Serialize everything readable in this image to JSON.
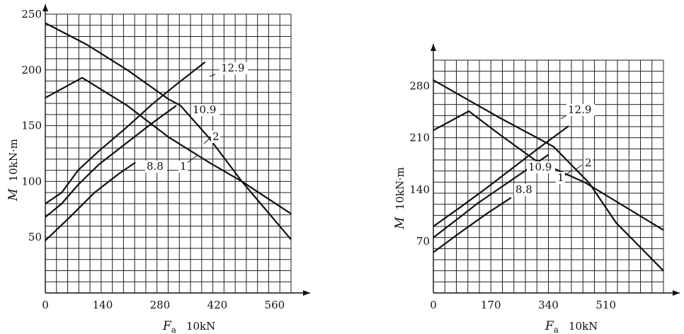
{
  "chart_data": [
    {
      "type": "line",
      "xlabel": "Fa",
      "xlabel_sub": "a",
      "xunit": "10kN",
      "ylabel": "M",
      "yunit": "10kN·m",
      "xlim": [
        0,
        600
      ],
      "ylim": [
        0,
        250
      ],
      "xticks": [
        0,
        140,
        280,
        420,
        560
      ],
      "yticks": [
        50,
        100,
        150,
        200,
        250
      ],
      "grid": true,
      "series": [
        {
          "name": "12.9",
          "x": [
            0,
            40,
            80,
            130,
            200,
            260,
            320,
            390
          ],
          "y": [
            80,
            90,
            110,
            127,
            149,
            169,
            187,
            207
          ]
        },
        {
          "name": "10.9",
          "x": [
            0,
            40,
            80,
            130,
            200,
            260,
            320
          ],
          "y": [
            68,
            80,
            97,
            115,
            135,
            152,
            168
          ]
        },
        {
          "name": "8.8",
          "x": [
            0,
            60,
            120,
            180,
            220
          ],
          "y": [
            47,
            68,
            90,
            107,
            117
          ]
        },
        {
          "name": "1",
          "x": [
            0,
            90,
            200,
            300,
            400,
            480,
            600
          ],
          "y": [
            175,
            193,
            168,
            140,
            117,
            100,
            71
          ]
        },
        {
          "name": "2",
          "x": [
            0,
            100,
            200,
            300,
            330,
            400,
            480,
            600
          ],
          "y": [
            242,
            223,
            200,
            174,
            168,
            139,
            100,
            48
          ]
        }
      ]
    },
    {
      "type": "line",
      "xlabel": "Fa",
      "xlabel_sub": "a",
      "xunit": "10kN",
      "ylabel": "M",
      "yunit": "10kN·m",
      "xlim": [
        0,
        680
      ],
      "ylim": [
        0,
        315
      ],
      "xticks": [
        0,
        170,
        340,
        510
      ],
      "yticks": [
        70,
        140,
        210,
        280
      ],
      "grid": true,
      "series": [
        {
          "name": "12.9",
          "x": [
            0,
            80,
            160,
            240,
            320,
            400
          ],
          "y": [
            90,
            116,
            143,
            171,
            199,
            226
          ]
        },
        {
          "name": "10.9",
          "x": [
            0,
            80,
            130,
            200,
            280,
            340
          ],
          "y": [
            75,
            103,
            121,
            143,
            168,
            187
          ]
        },
        {
          "name": "8.8",
          "x": [
            0,
            80,
            160,
            230
          ],
          "y": [
            55,
            82,
            108,
            129
          ]
        },
        {
          "name": "1",
          "x": [
            0,
            105,
            200,
            300,
            450,
            680
          ],
          "y": [
            220,
            246,
            213,
            180,
            149,
            85
          ]
        },
        {
          "name": "2",
          "x": [
            0,
            100,
            200,
            355,
            460,
            540,
            680
          ],
          "y": [
            288,
            262,
            236,
            198,
            149,
            95,
            30
          ]
        }
      ]
    }
  ]
}
